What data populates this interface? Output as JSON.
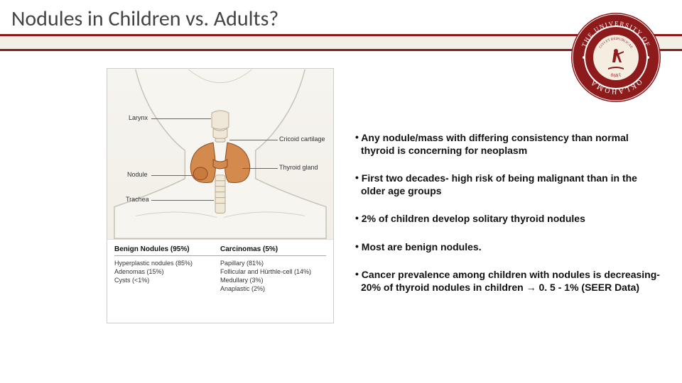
{
  "title": "Nodules in Children vs. Adults?",
  "colors": {
    "accent": "#8e1b1b",
    "band_bg": "#f2efe7",
    "thyroid_fill": "#d58a4d",
    "thyroid_stroke": "#8a4a22",
    "neck_fill": "#f6f3ee",
    "neck_stroke": "#c9c4b8",
    "seal_outer": "#8e1b1b",
    "seal_inner": "#b94a4a"
  },
  "seal": {
    "top_text": "THE UNIVERSITY OF",
    "bottom_text": "OKLAHOMA",
    "latin": "CIVI ET REIPUBLICAE",
    "year": "1890"
  },
  "anatomy_labels": {
    "larynx": "Larynx",
    "nodule": "Nodule",
    "trachea": "Trachea",
    "cricoid": "Cricoid cartilage",
    "thyroid": "Thyroid gland"
  },
  "nodule_table": {
    "left": {
      "header": "Benign Nodules (95%)",
      "rows": [
        "Hyperplastic nodules (85%)",
        "Adenomas (15%)",
        "Cysts (<1%)"
      ]
    },
    "right": {
      "header": "Carcinomas (5%)",
      "rows": [
        "Papillary (81%)",
        "Follicular and Hürthle-cell (14%)",
        "Medullary (3%)",
        "Anaplastic (2%)"
      ]
    }
  },
  "bullets": [
    "Any nodule/mass with differing consistency than normal thyroid is concerning for neoplasm",
    "First two decades- high risk of being malignant than in the older age groups",
    "2% of children develop solitary thyroid nodules",
    "Most are benign nodules.",
    "Cancer prevalence among children with nodules is decreasing-20% of thyroid nodules in children → 0. 5 - 1% (SEER Data)"
  ]
}
